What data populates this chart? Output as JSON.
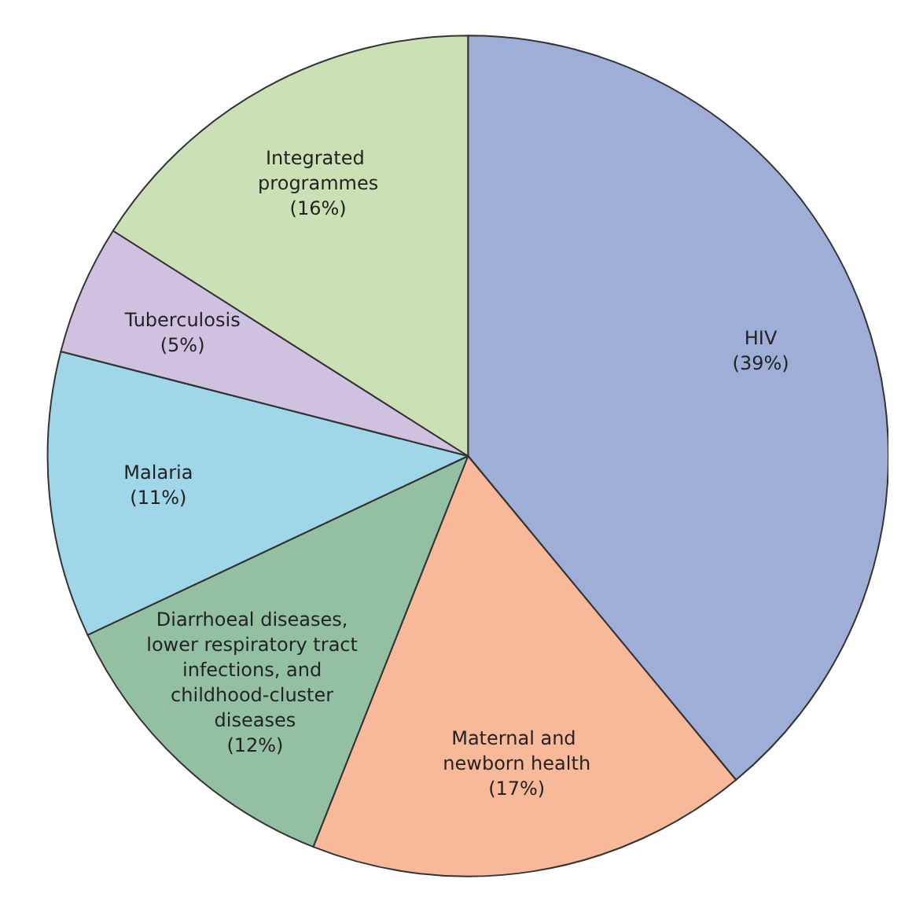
{
  "chart_data": {
    "type": "pie",
    "categories": [
      "HIV",
      "Maternal and newborn health",
      "Diarrhoeal diseases, lower respiratory tract infections, and childhood-cluster diseases",
      "Malaria",
      "Tuberculosis",
      "Integrated programmes"
    ],
    "values": [
      39,
      17,
      12,
      11,
      5,
      16
    ],
    "value_labels": [
      "(39%)",
      "(17%)",
      "(12%)",
      "(11%)",
      "(5%)",
      "(16%)"
    ],
    "colors": [
      "#9eaed6",
      "#f8b89a",
      "#93bfa3",
      "#9fd6e8",
      "#cfc2e0",
      "#cbe0b5"
    ],
    "legend": false
  }
}
